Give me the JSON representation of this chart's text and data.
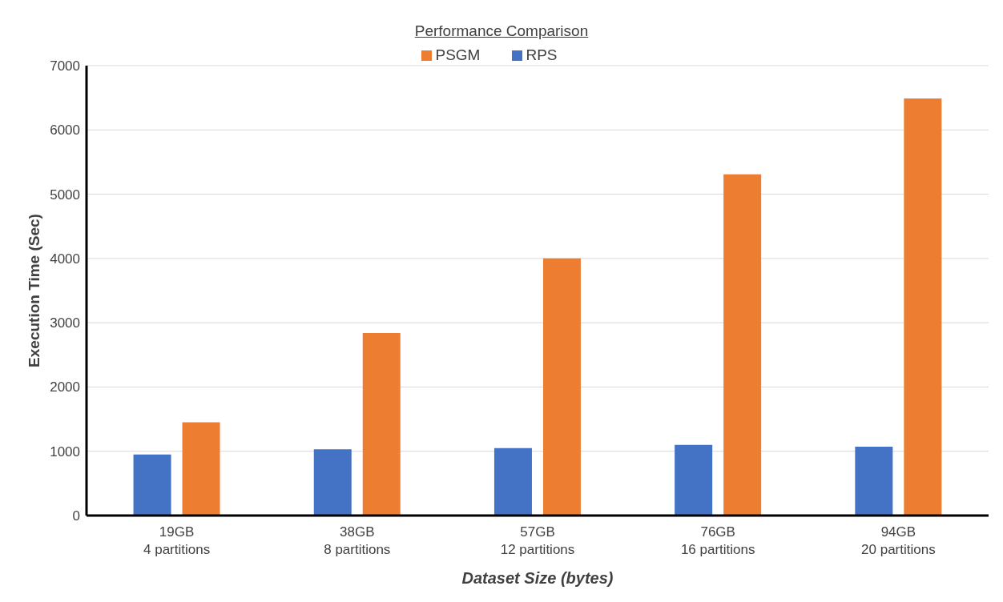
{
  "chart_data": {
    "type": "bar",
    "title": "Performance Comparison",
    "xlabel": "Dataset Size (bytes)",
    "ylabel": "Execution Time (Sec)",
    "categories": [
      "19GB\n4 partitions",
      "38GB\n8 partitions",
      "57GB\n12 partitions",
      "76GB\n16 partitions",
      "94GB\n20 partitions"
    ],
    "series": [
      {
        "name": "RPS",
        "color": "#4472c4",
        "values": [
          950,
          1030,
          1050,
          1100,
          1070
        ]
      },
      {
        "name": "PSGM",
        "color": "#ed7d31",
        "values": [
          1450,
          2840,
          4000,
          5310,
          6490
        ]
      }
    ],
    "ylim": [
      0,
      7000
    ],
    "yticks": [
      0,
      1000,
      2000,
      3000,
      4000,
      5000,
      6000,
      7000
    ],
    "grid": "y",
    "legend": "top"
  }
}
